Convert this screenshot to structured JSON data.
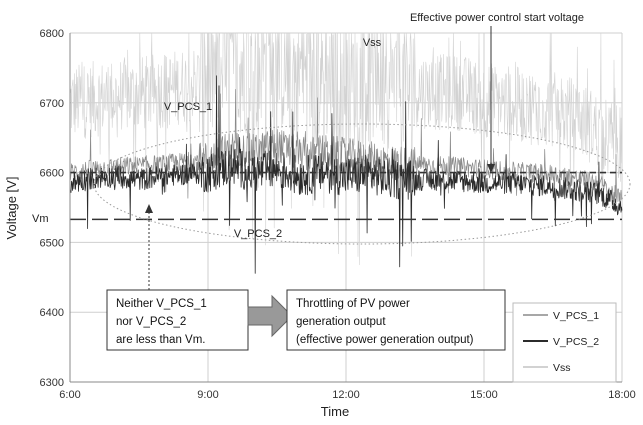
{
  "chart_data": {
    "type": "line",
    "title": "",
    "xlabel": "Time",
    "ylabel": "Voltage [V]",
    "xlim": [
      6,
      18
    ],
    "ylim": [
      6300,
      6800
    ],
    "x_ticks": [
      6,
      9,
      12,
      15,
      18
    ],
    "x_tick_labels": [
      "6:00",
      "9:00",
      "12:00",
      "15:00",
      "18:00"
    ],
    "y_ticks": [
      6300,
      6400,
      6500,
      6600,
      6700,
      6800
    ],
    "grid": true,
    "legend_position": "bottom-right",
    "series": [
      {
        "name": "V_PCS_1",
        "color": "#8a8a8a",
        "x": [
          6.0,
          6.5,
          7.0,
          7.5,
          8.0,
          8.5,
          9.0,
          9.5,
          10.0,
          10.5,
          11.0,
          11.5,
          12.0,
          12.5,
          13.0,
          13.5,
          14.0,
          14.5,
          15.0,
          15.5,
          16.0,
          16.5,
          17.0,
          17.5,
          18.0
        ],
        "values": [
          6600,
          6605,
          6608,
          6610,
          6612,
          6615,
          6620,
          6635,
          6630,
          6640,
          6625,
          6630,
          6625,
          6620,
          6615,
          6612,
          6610,
          6608,
          6605,
          6602,
          6600,
          6598,
          6592,
          6585,
          6560
        ]
      },
      {
        "name": "V_PCS_2",
        "color": "#2b2b2b",
        "x": [
          6.0,
          6.5,
          7.0,
          7.5,
          8.0,
          8.5,
          9.0,
          9.5,
          10.0,
          10.5,
          11.0,
          11.5,
          12.0,
          12.5,
          13.0,
          13.5,
          14.0,
          14.5,
          15.0,
          15.5,
          16.0,
          16.5,
          17.0,
          17.5,
          18.0
        ],
        "values": [
          6585,
          6592,
          6595,
          6590,
          6595,
          6598,
          6600,
          6610,
          6600,
          6605,
          6595,
          6600,
          6595,
          6598,
          6590,
          6590,
          6590,
          6588,
          6585,
          6585,
          6583,
          6580,
          6575,
          6570,
          6550
        ]
      },
      {
        "name": "Vss",
        "color": "#d2d2d2",
        "x": [
          6.0,
          6.5,
          7.0,
          7.5,
          8.0,
          8.5,
          9.0,
          9.5,
          10.0,
          10.5,
          11.0,
          11.5,
          12.0,
          12.5,
          13.0,
          13.5,
          14.0,
          14.5,
          15.0,
          15.5,
          16.0,
          16.5,
          17.0,
          17.5,
          18.0
        ],
        "values": [
          6700,
          6705,
          6710,
          6712,
          6718,
          6725,
          6735,
          6760,
          6750,
          6755,
          6745,
          6740,
          6730,
          6735,
          6725,
          6720,
          6715,
          6715,
          6705,
          6700,
          6695,
          6690,
          6680,
          6660,
          6640
        ]
      }
    ],
    "reference_lines": [
      {
        "id": "ref-start",
        "y": 6600,
        "style": "dashed",
        "color": "#333333"
      },
      {
        "id": "ref-vm",
        "label": "Vm",
        "y": 6533,
        "style": "long-dashed",
        "color": "#333333"
      }
    ],
    "annotations": {
      "vss_label": "Vss",
      "vpcs1_label": "V_PCS_1",
      "vpcs2_label": "V_PCS_2",
      "vm_label": "Vm",
      "start_voltage_label": "Effective power control start voltage",
      "neither_box": {
        "lines": [
          "Neither V_PCS_1",
          "nor V_PCS_2",
          "are less than Vm."
        ]
      },
      "throttle_box": {
        "lines": [
          "Throttling of PV power",
          "generation output",
          "(effective power generation output)"
        ]
      }
    }
  }
}
